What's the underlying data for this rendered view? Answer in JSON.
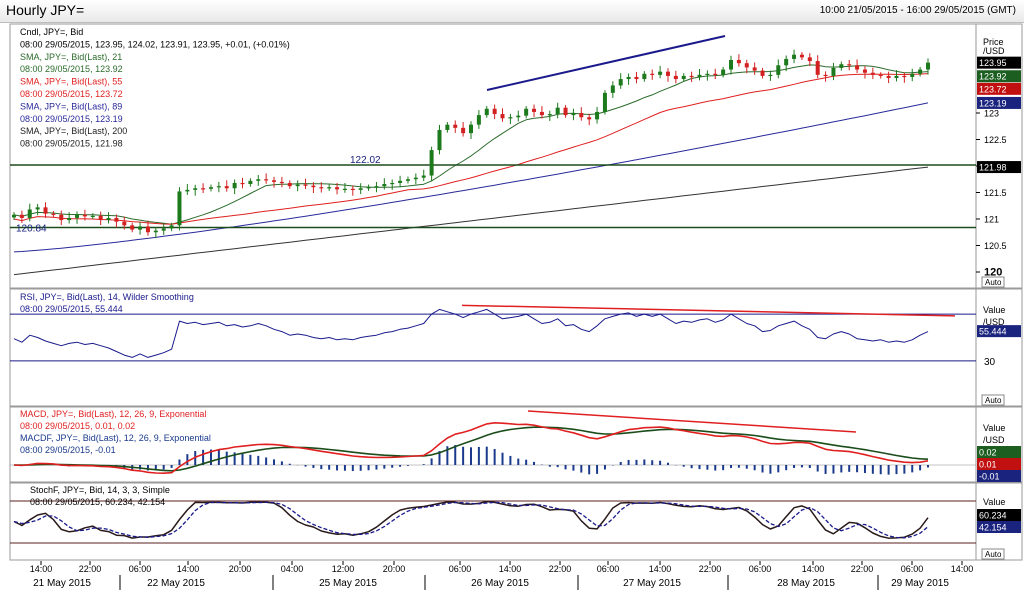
{
  "window": {
    "title": "Hourly JPY=",
    "date_range": "10:00 21/05/2015 - 16:00 29/05/2015 (GMT)"
  },
  "colors": {
    "candle_up": "#1c7a1c",
    "candle_down": "#d32020",
    "sma21": "#2b6b2b",
    "sma55": "#e02020",
    "sma89": "#2a2a9c",
    "sma200": "#333333",
    "trendline_blue": "#1a1a8c",
    "trendline_red": "#e02020",
    "level_line": "#1b4d1b",
    "rsi_line": "#1a1a8c",
    "macd_line": "#e02020",
    "macd_signal": "#1b4d1b",
    "macd_hist": "#1a3a8c",
    "stoch_k": "#2a1a1a",
    "stoch_d": "#1a1a8c",
    "label_bg_blue": "#1a237e",
    "label_bg_red": "#c01010",
    "label_bg_black": "#000000",
    "label_bg_green": "#1b5e20"
  },
  "price_panel": {
    "legend": [
      "Cndl, JPY=, Bid",
      "08:00 29/05/2015, 123.95, 124.02, 123.91, 123.95, +0.01, (+0.01%)",
      "SMA, JPY=, Bid(Last), 21",
      "08:00 29/05/2015, 123.92",
      "SMA, JPY=, Bid(Last), 55",
      "08:00 29/05/2015, 123.72",
      "SMA, JPY=, Bid(Last), 89",
      "08:00 29/05/2015, 123.19",
      "SMA, JPY=, Bid(Last), 200",
      "08:00 29/05/2015, 121.98"
    ],
    "axis_header": [
      "Price",
      "/USD"
    ],
    "ticks": [
      "123",
      "122.5",
      "122",
      "121.5",
      "121",
      "120.5",
      "120"
    ],
    "tags": [
      "123.95",
      "123.92",
      "123.72",
      "123.19",
      "121.98"
    ],
    "level_labels": [
      "122.02",
      "120.84"
    ],
    "auto_label": "Auto"
  },
  "rsi_panel": {
    "legend": [
      "RSI, JPY=, Bid(Last), 14, Wilder Smoothing",
      "08:00 29/05/2015, 55.444"
    ],
    "axis_header": [
      "Value",
      "/USD"
    ],
    "ticks": [
      "30"
    ],
    "tags": [
      "55.444"
    ],
    "auto_label": "Auto"
  },
  "macd_panel": {
    "legend": [
      "MACD, JPY=, Bid(Last), 12, 26, 9, Exponential",
      "08:00 29/05/2015, 0.01, 0.02",
      "MACDF, JPY=, Bid(Last), 12, 26, 9, Exponential",
      "08:00 29/05/2015, -0.01"
    ],
    "axis_header": [
      "Value",
      "/USD"
    ],
    "tags": [
      "0.02",
      "0.01",
      "-0.01"
    ],
    "auto_label": "Auto"
  },
  "stoch_panel": {
    "legend": [
      "StochF, JPY=, Bid, 14, 3, 3, Simple",
      "08:00 29/05/2015, 60.234, 42.154"
    ],
    "axis_header": [
      "Value"
    ],
    "tags": [
      "60.234",
      "42.154"
    ],
    "auto_label": "Auto"
  },
  "x_axis": {
    "hour_ticks": [
      "14:00",
      "22:00",
      "06:00",
      "14:00",
      "20:00",
      "04:00",
      "12:00",
      "20:00",
      "06:00",
      "14:00",
      "22:00",
      "06:00",
      "14:00",
      "22:00",
      "06:00",
      "14:00",
      "22:00",
      "06:00",
      "14:00"
    ],
    "day_labels": [
      "21 May 2015",
      "22 May 2015",
      "25 May 2015",
      "26 May 2015",
      "27 May 2015",
      "28 May 2015",
      "29 May 2015"
    ]
  },
  "chart_data": {
    "type": "line",
    "title": "Hourly JPY=",
    "instrument": "JPY= (USD/JPY), Bid, hourly",
    "x_range": [
      "21/05/2015 10:00",
      "29/05/2015 16:00"
    ],
    "price": {
      "ylim": [
        119.9,
        124.3
      ],
      "close": [
        121.08,
        121.02,
        121.18,
        121.22,
        121.1,
        121.08,
        120.98,
        121.02,
        121.08,
        121.05,
        121.06,
        120.98,
        121.02,
        120.95,
        120.88,
        120.8,
        120.86,
        120.75,
        120.78,
        120.82,
        120.88,
        121.52,
        121.55,
        121.58,
        121.57,
        121.6,
        121.62,
        121.58,
        121.68,
        121.66,
        121.72,
        121.75,
        121.73,
        121.7,
        121.68,
        121.62,
        121.65,
        121.63,
        121.6,
        121.58,
        121.6,
        121.56,
        121.57,
        121.55,
        121.58,
        121.6,
        121.62,
        121.66,
        121.68,
        121.72,
        121.75,
        121.78,
        121.82,
        122.3,
        122.68,
        122.78,
        122.72,
        122.62,
        122.78,
        122.96,
        123.08,
        122.98,
        122.9,
        122.92,
        122.95,
        123.08,
        123.02,
        122.96,
        122.98,
        123.1,
        122.96,
        123.0,
        122.92,
        122.88,
        123.02,
        123.38,
        123.52,
        123.64,
        123.68,
        123.64,
        123.74,
        123.72,
        123.78,
        123.7,
        123.64,
        123.7,
        123.68,
        123.72,
        123.74,
        123.72,
        123.82,
        124.0,
        123.94,
        123.86,
        123.8,
        123.7,
        123.72,
        123.9,
        124.02,
        124.1,
        124.05,
        123.98,
        123.72,
        123.7,
        123.85,
        123.92,
        123.9,
        123.82,
        123.76,
        123.72,
        123.7,
        123.66,
        123.7,
        123.68,
        123.74,
        123.82,
        123.95
      ],
      "sma_21": {
        "start": 121.02,
        "end": 123.92
      },
      "sma_55": {
        "start": 120.96,
        "end": 123.72
      },
      "sma_89": {
        "start": 120.38,
        "end": 123.19
      },
      "sma_200": {
        "start": 119.95,
        "end": 121.98
      },
      "horizontal_levels": [
        122.02,
        120.84
      ]
    },
    "rsi": {
      "period": 14,
      "last": 55.444,
      "reference_levels": [
        70,
        30
      ],
      "values": [
        49,
        46,
        52,
        50,
        47,
        45,
        43,
        45,
        46,
        44,
        45,
        43,
        41,
        38,
        35,
        33,
        36,
        33,
        35,
        37,
        40,
        64,
        62,
        63,
        61,
        62,
        63,
        60,
        61,
        59,
        60,
        62,
        60,
        57,
        55,
        52,
        53,
        52,
        50,
        49,
        50,
        48,
        49,
        48,
        50,
        51,
        52,
        54,
        55,
        57,
        58,
        60,
        62,
        70,
        74,
        72,
        70,
        67,
        70,
        72,
        74,
        70,
        66,
        67,
        68,
        70,
        66,
        62,
        63,
        66,
        60,
        61,
        57,
        55,
        60,
        66,
        68,
        70,
        71,
        68,
        70,
        68,
        70,
        66,
        62,
        64,
        63,
        65,
        66,
        63,
        65,
        70,
        66,
        62,
        60,
        55,
        56,
        60,
        62,
        64,
        60,
        57,
        50,
        49,
        53,
        55,
        53,
        49,
        48,
        47,
        48,
        46,
        47,
        46,
        48,
        52,
        55
      ]
    },
    "macd": {
      "params": [
        12,
        26,
        9
      ],
      "macd_last": 0.01,
      "signal_last": 0.02,
      "histogram_last": -0.01
    },
    "stoch": {
      "params": [
        14,
        3,
        3
      ],
      "k_last": 60.234,
      "d_last": 42.154
    }
  }
}
